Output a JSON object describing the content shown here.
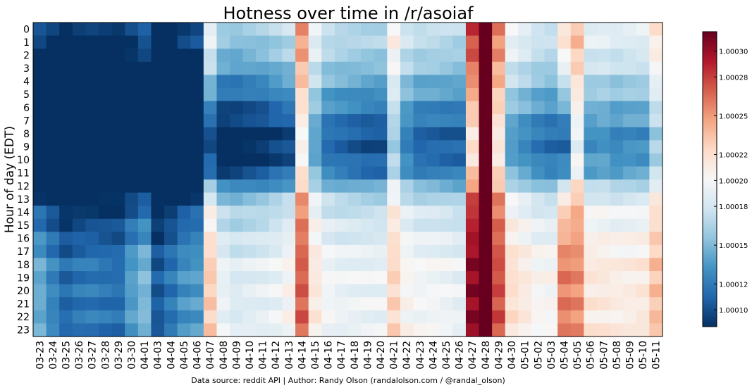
{
  "chart_data": {
    "type": "heatmap",
    "title": "Hotness over time in /r/asoiaf",
    "ylabel": "Hour of day (EDT)",
    "xlabel": "",
    "footer": "Data source: reddit API | Author: Randy Olson (randalolson.com / @randal_olson)",
    "x": [
      "03-23",
      "03-24",
      "03-25",
      "03-26",
      "03-27",
      "03-28",
      "03-29",
      "03-30",
      "04-01",
      "04-03",
      "04-04",
      "04-05",
      "04-06",
      "04-07",
      "04-08",
      "04-09",
      "04-10",
      "04-11",
      "04-12",
      "04-13",
      "04-14",
      "04-15",
      "04-16",
      "04-17",
      "04-18",
      "04-19",
      "04-20",
      "04-21",
      "04-22",
      "04-23",
      "04-24",
      "04-25",
      "04-26",
      "04-27",
      "04-28",
      "04-29",
      "04-30",
      "05-01",
      "05-02",
      "05-03",
      "05-04",
      "05-05",
      "05-06",
      "05-07",
      "05-08",
      "05-09",
      "05-10",
      "05-11"
    ],
    "y": [
      "0",
      "1",
      "2",
      "3",
      "4",
      "5",
      "6",
      "7",
      "8",
      "9",
      "10",
      "11",
      "12",
      "13",
      "14",
      "15",
      "16",
      "17",
      "18",
      "19",
      "20",
      "21",
      "22",
      "23"
    ],
    "colorbar": {
      "min": 1.000087,
      "max": 1.000315,
      "ticks": [
        "1.00010",
        "1.00012",
        "1.00015",
        "1.00018",
        "1.00020",
        "1.00022",
        "1.00025",
        "1.00028",
        "1.00030"
      ],
      "cmap": [
        "#053061",
        "#2166ac",
        "#4393c3",
        "#92c5de",
        "#d1e5f0",
        "#f7f7f7",
        "#fddbc7",
        "#f4a582",
        "#d6604d",
        "#b2182b",
        "#67001f"
      ]
    }
  }
}
